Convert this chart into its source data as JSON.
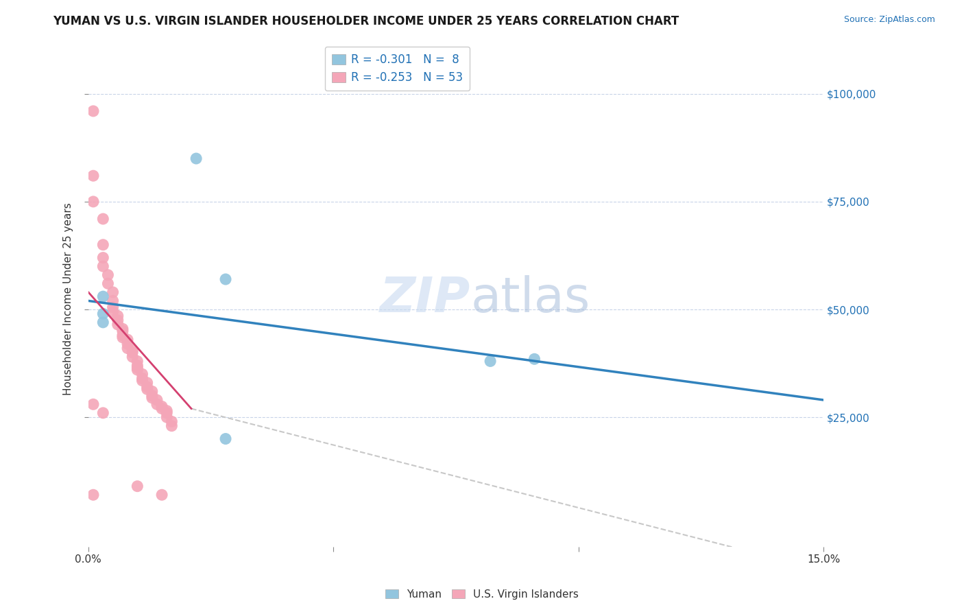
{
  "title": "YUMAN VS U.S. VIRGIN ISLANDER HOUSEHOLDER INCOME UNDER 25 YEARS CORRELATION CHART",
  "source": "Source: ZipAtlas.com",
  "ylabel": "Householder Income Under 25 years",
  "xlim": [
    0.0,
    0.15
  ],
  "ylim": [
    -5000,
    110000
  ],
  "yticks": [
    25000,
    50000,
    75000,
    100000
  ],
  "ytick_labels": [
    "$25,000",
    "$50,000",
    "$75,000",
    "$100,000"
  ],
  "legend_r1": "R = -0.301",
  "legend_n1": "N =  8",
  "legend_r2": "R = -0.253",
  "legend_n2": "N = 53",
  "watermark_zip": "ZIP",
  "watermark_atlas": "atlas",
  "color_blue": "#92c5de",
  "color_pink": "#f4a6b8",
  "trendline_blue_color": "#3182bd",
  "trendline_pink_color": "#d44070",
  "trendline_gray_color": "#c8c8c8",
  "blue_points": [
    [
      0.003,
      53000
    ],
    [
      0.003,
      47000
    ],
    [
      0.003,
      49000
    ],
    [
      0.022,
      85000
    ],
    [
      0.028,
      57000
    ],
    [
      0.082,
      38000
    ],
    [
      0.091,
      38500
    ],
    [
      0.028,
      20000
    ]
  ],
  "pink_points": [
    [
      0.001,
      96000
    ],
    [
      0.001,
      81000
    ],
    [
      0.001,
      75000
    ],
    [
      0.003,
      71000
    ],
    [
      0.003,
      65000
    ],
    [
      0.003,
      62000
    ],
    [
      0.003,
      60000
    ],
    [
      0.004,
      58000
    ],
    [
      0.004,
      56000
    ],
    [
      0.005,
      54000
    ],
    [
      0.005,
      52000
    ],
    [
      0.005,
      50500
    ],
    [
      0.005,
      49500
    ],
    [
      0.006,
      48500
    ],
    [
      0.006,
      47500
    ],
    [
      0.006,
      46500
    ],
    [
      0.007,
      45500
    ],
    [
      0.007,
      45000
    ],
    [
      0.007,
      44000
    ],
    [
      0.007,
      43500
    ],
    [
      0.008,
      43000
    ],
    [
      0.008,
      42000
    ],
    [
      0.008,
      41000
    ],
    [
      0.009,
      40500
    ],
    [
      0.009,
      40000
    ],
    [
      0.009,
      39000
    ],
    [
      0.01,
      38000
    ],
    [
      0.01,
      37000
    ],
    [
      0.01,
      36500
    ],
    [
      0.01,
      36000
    ],
    [
      0.011,
      35000
    ],
    [
      0.011,
      34000
    ],
    [
      0.011,
      33500
    ],
    [
      0.012,
      33000
    ],
    [
      0.012,
      32000
    ],
    [
      0.012,
      31500
    ],
    [
      0.013,
      31000
    ],
    [
      0.013,
      30000
    ],
    [
      0.013,
      29500
    ],
    [
      0.014,
      29000
    ],
    [
      0.014,
      28000
    ],
    [
      0.015,
      27500
    ],
    [
      0.015,
      27000
    ],
    [
      0.016,
      26500
    ],
    [
      0.016,
      26000
    ],
    [
      0.016,
      25000
    ],
    [
      0.017,
      24000
    ],
    [
      0.017,
      23000
    ],
    [
      0.001,
      28000
    ],
    [
      0.003,
      26000
    ],
    [
      0.01,
      9000
    ],
    [
      0.015,
      7000
    ],
    [
      0.001,
      7000
    ]
  ],
  "blue_trendline": [
    [
      0.0,
      52000
    ],
    [
      0.15,
      29000
    ]
  ],
  "pink_trendline": [
    [
      0.0,
      54000
    ],
    [
      0.021,
      27000
    ]
  ],
  "gray_trendline": [
    [
      0.021,
      27000
    ],
    [
      0.155,
      -12000
    ]
  ],
  "title_fontsize": 12,
  "axis_label_fontsize": 11,
  "tick_fontsize": 11,
  "legend_fontsize": 12
}
